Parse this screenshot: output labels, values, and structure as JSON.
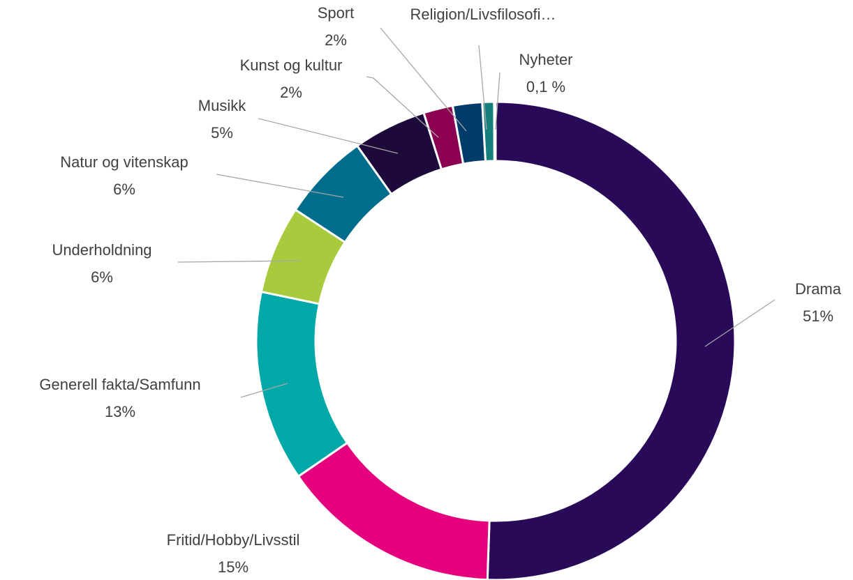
{
  "chart_data": {
    "type": "donut",
    "categories": [
      "Drama",
      "Fritid/Hobby/Livsstil",
      "Generell fakta/Samfunn",
      "Underholdning",
      "Natur og vitenskap",
      "Musikk",
      "Kunst og kultur",
      "Sport",
      "Religion/Livsfilosofi…",
      "Nyheter"
    ],
    "values": [
      51,
      15,
      13,
      6,
      6,
      5,
      2,
      2,
      0.8,
      0.1
    ],
    "value_labels": [
      "51%",
      "15%",
      "13%",
      "6%",
      "6%",
      "5%",
      "2%",
      "2%",
      null,
      "0,1 %"
    ],
    "colors": [
      "#280a58",
      "#e5007d",
      "#00a8a8",
      "#a9ca3c",
      "#006d8c",
      "#1d0a3b",
      "#8c0052",
      "#003c6a",
      "#157f7c",
      "#0d6b6b"
    ]
  }
}
